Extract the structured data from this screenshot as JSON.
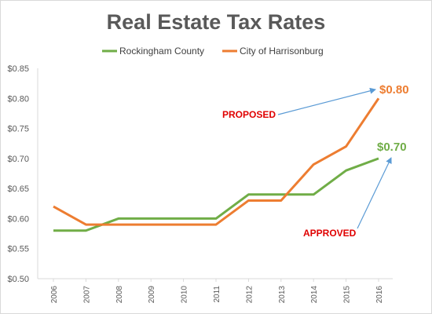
{
  "chart_data": {
    "type": "line",
    "title": "Real Estate Tax Rates",
    "xlabel": "",
    "ylabel": "",
    "categories": [
      "2006",
      "2007",
      "2008",
      "2009",
      "2010",
      "2011",
      "2012",
      "2013",
      "2014",
      "2015",
      "2016"
    ],
    "series": [
      {
        "name": "Rockingham County",
        "color": "#70ad47",
        "values": [
          0.58,
          0.58,
          0.6,
          0.6,
          0.6,
          0.6,
          0.64,
          0.64,
          0.64,
          0.68,
          0.7
        ],
        "end_label": "$0.70"
      },
      {
        "name": "City of Harrisonburg",
        "color": "#ed7d31",
        "values": [
          0.62,
          0.59,
          0.59,
          0.59,
          0.59,
          0.59,
          0.63,
          0.63,
          0.69,
          0.72,
          0.8
        ],
        "end_label": "$0.80"
      }
    ],
    "ylim": [
      0.5,
      0.85
    ],
    "yticks": [
      "$0.50",
      "$0.55",
      "$0.60",
      "$0.65",
      "$0.70",
      "$0.75",
      "$0.80",
      "$0.85"
    ],
    "ytick_values": [
      0.5,
      0.55,
      0.6,
      0.65,
      0.7,
      0.75,
      0.8,
      0.85
    ],
    "grid": false,
    "legend_position": "top",
    "annotations": [
      {
        "text": "PROPOSED",
        "color": "#e00000",
        "arrow_color": "#5b9bd5",
        "points_to_series": 1
      },
      {
        "text": "APPROVED",
        "color": "#e00000",
        "arrow_color": "#5b9bd5",
        "points_to_series": 0
      }
    ]
  }
}
